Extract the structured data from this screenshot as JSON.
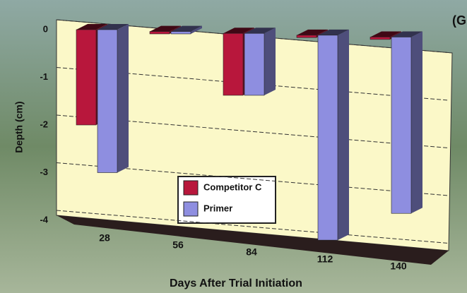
{
  "chart_data": {
    "type": "bar3d",
    "title": "(G",
    "x_label": "Days After Trial Initiation",
    "y_label": "Depth (cm)",
    "categories": [
      "28",
      "56",
      "84",
      "112",
      "140"
    ],
    "series": [
      {
        "name": "Competitor C",
        "color": "#b8173c",
        "values": [
          -2,
          -0.05,
          -1.3,
          -0.05,
          -0.05
        ]
      },
      {
        "name": "Primer",
        "color": "#8e8ee0",
        "values": [
          -3,
          -0.05,
          -1.3,
          -4.3,
          -3.7
        ]
      }
    ],
    "ylim": [
      -4.4,
      0
    ],
    "yticks": [
      0,
      -1,
      -2,
      -3,
      -4
    ],
    "grid": true
  }
}
